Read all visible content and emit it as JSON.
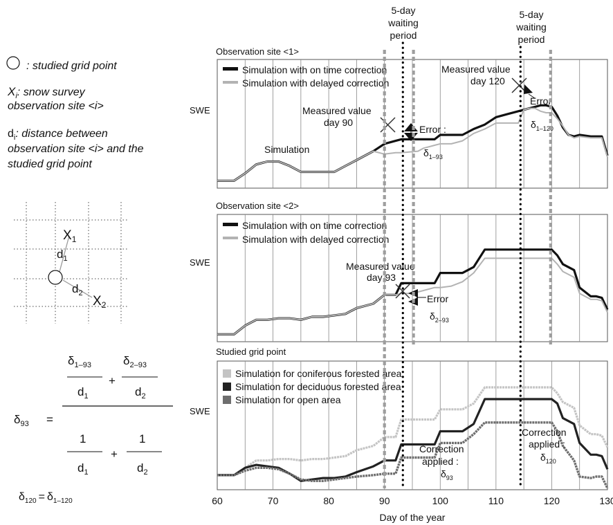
{
  "legend_left": {
    "circle_text": ": studied grid point",
    "xi_symbol": "X",
    "xi_sub": "i",
    "xi_text_line1": ": snow survey",
    "xi_text_line2": "observation site <i>",
    "di_symbol": "d",
    "di_sub": "i",
    "di_text_line1": ": distance between",
    "di_text_line2": "observation site <i> and the",
    "di_text_line3": "studied grid point"
  },
  "grid_schematic": {
    "x1": "X",
    "x1_sub": "1",
    "x2": "X",
    "x2_sub": "2",
    "d1": "d",
    "d1_sub": "1",
    "d2": "d",
    "d2_sub": "2"
  },
  "formula": {
    "lhs": "δ",
    "lhs_sub": "93",
    "equals": "=",
    "num1": "δ",
    "num1_sub": "1–93",
    "num2": "δ",
    "num2_sub": "2–93",
    "den_d1": "d",
    "den_d1_sub": "1",
    "den_d2": "d",
    "den_d2_sub": "2",
    "plus": "+",
    "one": "1",
    "bottom_d1": "d",
    "bottom_d1_sub": "1",
    "bottom_d2": "d",
    "bottom_d2_sub": "2",
    "f2_lhs": "δ",
    "f2_lhs_sub": "120",
    "f2_eq": "=",
    "f2_rhs": "δ",
    "f2_rhs_sub": "1–120"
  },
  "waiting": {
    "line1": "5-day",
    "line2": "waiting",
    "line3": "period"
  },
  "colors": {
    "ontime": "#111111",
    "delayed": "#b3b3b3",
    "coniferous": "#c4c4c4",
    "deciduous": "#222222",
    "open": "#6e6e6e",
    "dash": "#9e9e9e",
    "grid": "#888888"
  },
  "chart_data": [
    {
      "type": "line",
      "title": "Observation site <1>",
      "ylabel": "SWE",
      "xlim": [
        60,
        130
      ],
      "grid": "vertical lines every 5 days",
      "legend_position": "top-left",
      "series": [
        {
          "name": "Simulation with on time correction",
          "x": [
            60,
            63,
            65,
            67,
            69,
            71,
            73,
            75,
            77,
            79,
            81,
            83,
            85,
            88,
            90,
            92,
            93,
            97,
            99,
            100,
            102,
            104,
            106,
            108,
            110,
            112,
            114,
            115,
            117,
            118,
            119,
            120,
            121,
            122,
            123,
            124,
            125,
            127,
            128,
            129,
            130
          ],
          "y": [
            0,
            0,
            0.05,
            0.11,
            0.13,
            0.13,
            0.1,
            0.06,
            0.06,
            0.06,
            0.06,
            0.1,
            0.14,
            0.2,
            0.25,
            0.27,
            0.28,
            0.28,
            0.28,
            0.31,
            0.31,
            0.31,
            0.35,
            0.38,
            0.43,
            0.45,
            0.47,
            0.48,
            0.5,
            0.51,
            0.51,
            0.5,
            0.44,
            0.36,
            0.31,
            0.3,
            0.31,
            0.3,
            0.3,
            0.3,
            0.17
          ]
        },
        {
          "name": "Simulation with delayed correction",
          "x": [
            60,
            63,
            65,
            67,
            69,
            71,
            73,
            75,
            77,
            79,
            81,
            83,
            85,
            88,
            90,
            92,
            93,
            96,
            97,
            99,
            100,
            102,
            104,
            106,
            108,
            110,
            112,
            114,
            115,
            116,
            117,
            118,
            119,
            120,
            121,
            122,
            123,
            124,
            125,
            127,
            128,
            129,
            130
          ],
          "y": [
            0,
            0,
            0.05,
            0.11,
            0.13,
            0.13,
            0.1,
            0.06,
            0.06,
            0.06,
            0.06,
            0.1,
            0.14,
            0.2,
            0.18,
            0.19,
            0.19,
            0.2,
            0.22,
            0.24,
            0.25,
            0.25,
            0.27,
            0.32,
            0.35,
            0.39,
            0.39,
            0.39,
            0.48,
            0.49,
            0.49,
            0.47,
            0.46,
            0.46,
            0.42,
            0.37,
            0.31,
            0.29,
            0.3,
            0.29,
            0.29,
            0.29,
            0.16
          ]
        }
      ],
      "annotations": [
        {
          "text_line1": "Measured value",
          "text_line2": "day 90",
          "x": 90
        },
        {
          "text_line1": "Measured value",
          "text_line2": "day 120",
          "x": 114.5
        },
        {
          "text": "Simulation"
        },
        {
          "text": "Error :",
          "delta": "δ",
          "delta_sub": "1–93"
        },
        {
          "text": "Error",
          "delta": "δ",
          "delta_sub": "1–120"
        }
      ]
    },
    {
      "type": "line",
      "title": "Observation site <2>",
      "ylabel": "SWE",
      "xlim": [
        60,
        130
      ],
      "legend_position": "top-left",
      "series": [
        {
          "name": "Simulation with on time correction",
          "x": [
            60,
            63,
            65,
            67,
            69,
            71,
            73,
            75,
            77,
            79,
            81,
            83,
            85,
            88,
            90,
            92,
            93,
            95,
            97,
            99,
            100,
            102,
            104,
            106,
            108,
            110,
            112,
            114,
            116,
            118,
            120,
            121,
            122,
            124,
            125,
            127,
            128,
            129,
            130
          ],
          "y": [
            0,
            0,
            0.06,
            0.1,
            0.1,
            0.11,
            0.11,
            0.1,
            0.12,
            0.12,
            0.13,
            0.14,
            0.18,
            0.21,
            0.27,
            0.27,
            0.35,
            0.35,
            0.35,
            0.35,
            0.42,
            0.42,
            0.42,
            0.46,
            0.58,
            0.58,
            0.58,
            0.58,
            0.58,
            0.58,
            0.58,
            0.54,
            0.48,
            0.44,
            0.32,
            0.26,
            0.26,
            0.25,
            0.17
          ]
        },
        {
          "name": "Simulation with delayed correction",
          "x": [
            60,
            63,
            65,
            67,
            69,
            71,
            73,
            75,
            77,
            79,
            81,
            83,
            85,
            88,
            90,
            92,
            93,
            95,
            97,
            99,
            100,
            102,
            104,
            106,
            108,
            110,
            112,
            114,
            116,
            118,
            120,
            121,
            122,
            124,
            125,
            127,
            128,
            129,
            130
          ],
          "y": [
            0,
            0,
            0.06,
            0.1,
            0.1,
            0.11,
            0.11,
            0.1,
            0.12,
            0.12,
            0.13,
            0.14,
            0.18,
            0.21,
            0.27,
            0.27,
            0.28,
            0.28,
            0.3,
            0.32,
            0.32,
            0.33,
            0.36,
            0.42,
            0.52,
            0.52,
            0.52,
            0.52,
            0.52,
            0.52,
            0.52,
            0.48,
            0.43,
            0.39,
            0.28,
            0.24,
            0.24,
            0.23,
            0.15
          ]
        }
      ],
      "annotations": [
        {
          "text_line1": "Measured value",
          "text_line2": "day 93",
          "x": 93
        },
        {
          "text": "Error",
          "delta": "δ",
          "delta_sub": "2–93"
        }
      ]
    },
    {
      "type": "line",
      "title": "Studied grid point",
      "ylabel": "SWE",
      "xlabel": "Day of the year",
      "xlim": [
        60,
        130
      ],
      "xticks": [
        60,
        70,
        80,
        90,
        100,
        110,
        120,
        130
      ],
      "legend_position": "top-left",
      "series": [
        {
          "name": "Simulation for coniferous forested area",
          "x": [
            60,
            63,
            65,
            67,
            69,
            71,
            73,
            75,
            77,
            79,
            81,
            83,
            85,
            88,
            90,
            92,
            93,
            95,
            97,
            99,
            100,
            102,
            104,
            106,
            108,
            110,
            112,
            114,
            116,
            118,
            120,
            121,
            122,
            124,
            125,
            127,
            128,
            129,
            130
          ],
          "y": [
            0,
            0,
            0.05,
            0.1,
            0.1,
            0.11,
            0.11,
            0.1,
            0.11,
            0.11,
            0.12,
            0.13,
            0.17,
            0.2,
            0.26,
            0.26,
            0.38,
            0.38,
            0.38,
            0.38,
            0.45,
            0.45,
            0.45,
            0.49,
            0.6,
            0.6,
            0.6,
            0.6,
            0.6,
            0.6,
            0.6,
            0.56,
            0.5,
            0.46,
            0.34,
            0.28,
            0.28,
            0.27,
            0.19
          ]
        },
        {
          "name": "Simulation for deciduous forested area",
          "x": [
            60,
            63,
            65,
            67,
            69,
            71,
            73,
            75,
            77,
            79,
            81,
            83,
            85,
            88,
            90,
            92,
            93,
            95,
            97,
            99,
            100,
            102,
            104,
            106,
            108,
            110,
            112,
            114,
            116,
            118,
            120,
            121,
            122,
            124,
            125,
            127,
            128,
            129,
            130
          ],
          "y": [
            0,
            0,
            0.05,
            0.07,
            0.06,
            0.05,
            0.01,
            -0.04,
            -0.03,
            -0.02,
            -0.02,
            -0.01,
            0.02,
            0.06,
            0.1,
            0.1,
            0.21,
            0.21,
            0.21,
            0.21,
            0.3,
            0.3,
            0.3,
            0.35,
            0.52,
            0.52,
            0.52,
            0.52,
            0.52,
            0.52,
            0.52,
            0.49,
            0.39,
            0.35,
            0.22,
            0.14,
            0.14,
            0.13,
            0.04
          ]
        },
        {
          "name": "Simulation for open area",
          "x": [
            60,
            63,
            65,
            67,
            69,
            71,
            73,
            75,
            77,
            79,
            81,
            83,
            85,
            88,
            90,
            92,
            93,
            95,
            97,
            99,
            100,
            102,
            104,
            106,
            108,
            110,
            112,
            114,
            116,
            118,
            120,
            121,
            122,
            124,
            125,
            127,
            128,
            129,
            130
          ],
          "y": [
            0,
            0,
            0.03,
            0.05,
            0.05,
            0.04,
            0.01,
            -0.03,
            -0.04,
            -0.04,
            -0.03,
            -0.02,
            -0.01,
            0.0,
            0.01,
            0.01,
            0.12,
            0.12,
            0.12,
            0.12,
            0.22,
            0.22,
            0.22,
            0.28,
            0.36,
            0.36,
            0.36,
            0.36,
            0.36,
            0.36,
            0.36,
            0.3,
            0.2,
            0.1,
            -0.01,
            -0.02,
            -0.01,
            -0.01,
            -0.09
          ]
        }
      ],
      "annotations": [
        {
          "text_line1": "Correction",
          "text_line2": "applied :",
          "delta": "δ",
          "delta_sub": "93"
        },
        {
          "text_line1": "Correction",
          "text_line2": "applied :",
          "delta": "δ",
          "delta_sub": "120"
        }
      ]
    }
  ]
}
